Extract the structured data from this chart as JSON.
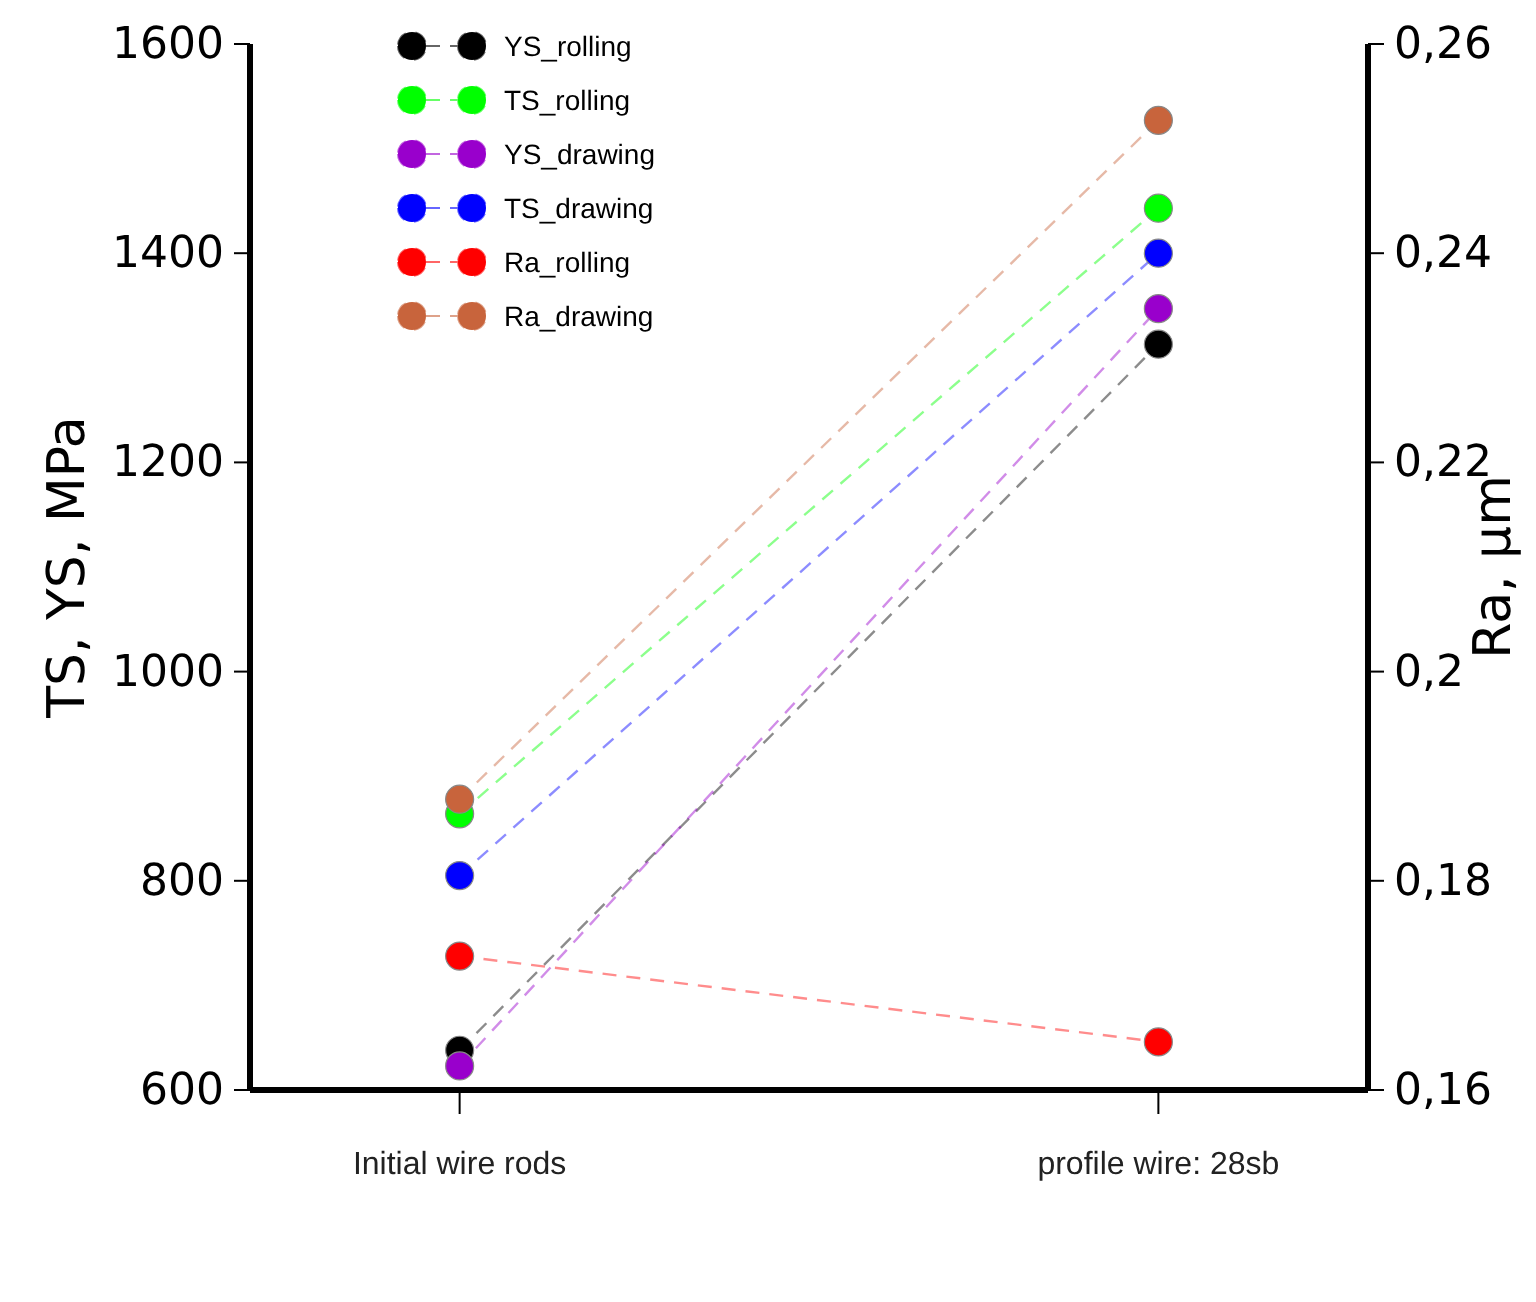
{
  "chart_data": {
    "type": "line",
    "categories": [
      "Initial wire rods",
      "profile wire: 28sb"
    ],
    "ylabel": "TS, YS, MPa",
    "y2label": "Ra, µm",
    "ylim": [
      600,
      1600
    ],
    "yticks": [
      600,
      800,
      1000,
      1200,
      1400,
      1600
    ],
    "y2lim": [
      0.16,
      0.26
    ],
    "y2ticks": [
      {
        "value": 0.16,
        "label": "0,16"
      },
      {
        "value": 0.18,
        "label": "0,18"
      },
      {
        "value": 0.2,
        "label": "0,2"
      },
      {
        "value": 0.22,
        "label": "0,22"
      },
      {
        "value": 0.24,
        "label": "0,24"
      },
      {
        "value": 0.26,
        "label": "0,26"
      }
    ],
    "marker": "circle",
    "line_style": "dashed",
    "legend": "top left",
    "grid": false,
    "series": [
      {
        "name": "YS_rolling",
        "color": "#000000",
        "values": [
          638,
          1313
        ]
      },
      {
        "name": "TS_rolling",
        "color": "#00ff00",
        "values": [
          864,
          1443
        ]
      },
      {
        "name": "YS_drawing",
        "color": "#9900cc",
        "values": [
          623,
          1347
        ]
      },
      {
        "name": "TS_drawing",
        "color": "#0000ff",
        "values": [
          805,
          1400
        ]
      },
      {
        "name": "Ra_rolling",
        "color": "#ff0000",
        "axis": "y2",
        "values": [
          0.1728,
          0.1646
        ]
      },
      {
        "name": "Ra_drawing",
        "color": "#c8643c",
        "axis": "y2",
        "values": [
          0.1878,
          0.2527
        ]
      }
    ]
  }
}
